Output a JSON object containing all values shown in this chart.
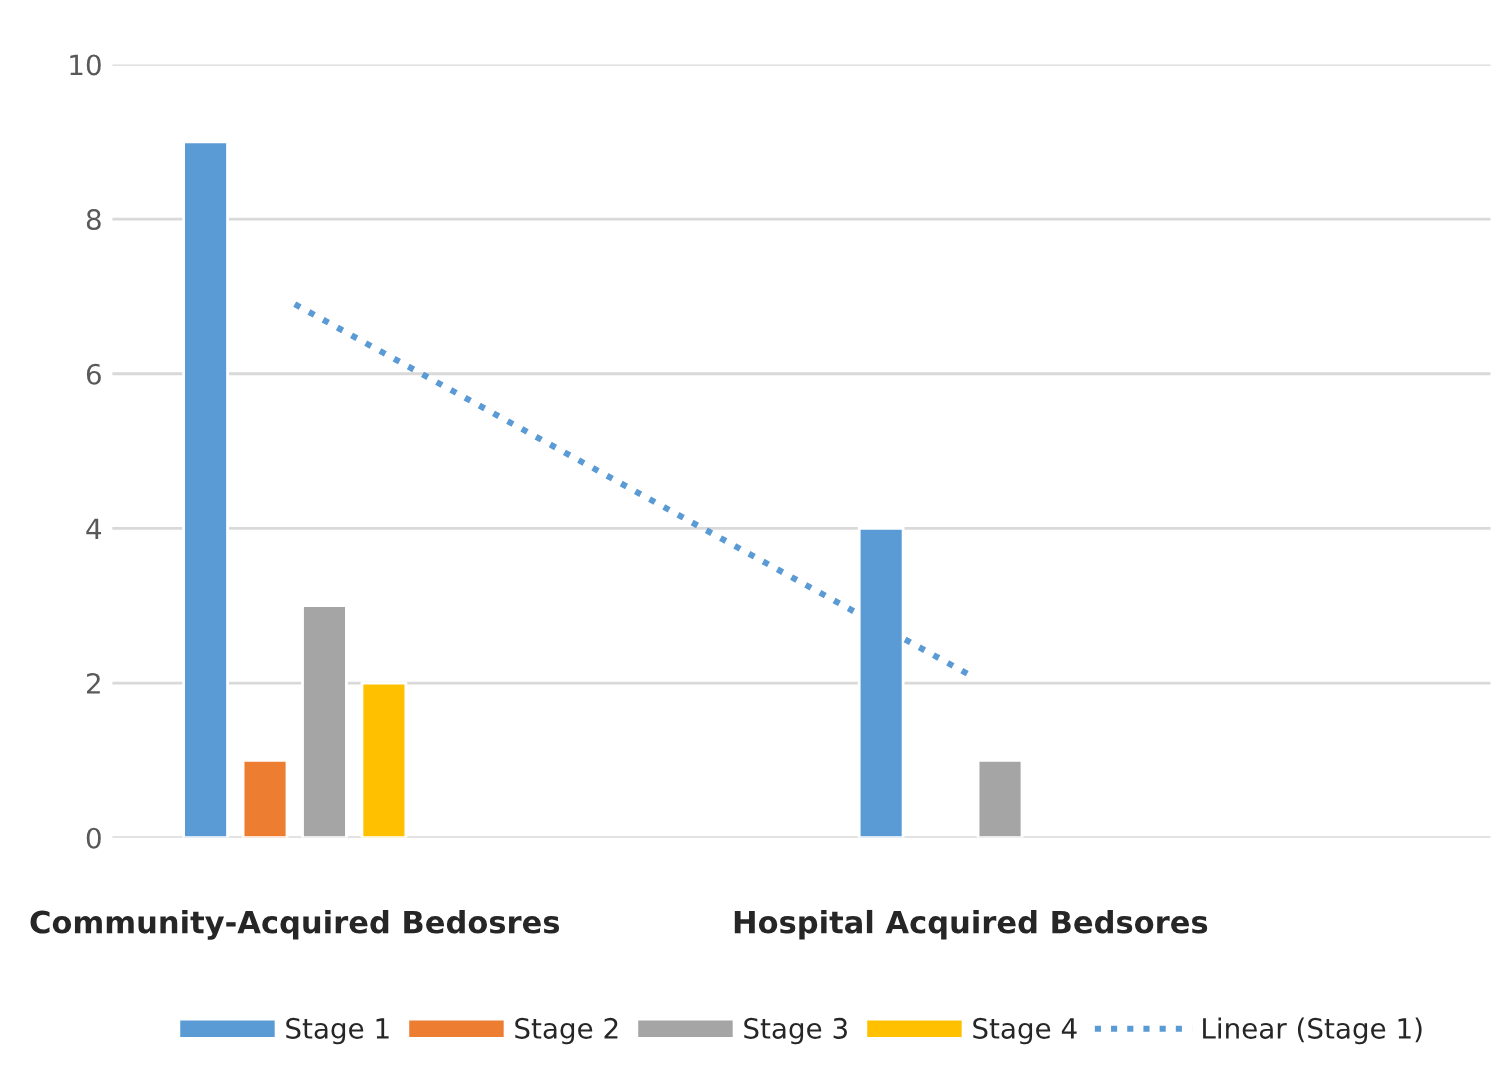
{
  "chart_data": {
    "type": "bar",
    "categories": [
      "Community-Acquired Bedosres",
      "Hospital Acquired Bedsores"
    ],
    "series": [
      {
        "name": "Stage 1",
        "color": "#5b9bd5",
        "values": [
          9,
          4
        ]
      },
      {
        "name": "Stage 2",
        "color": "#ed7d31",
        "values": [
          1,
          null
        ]
      },
      {
        "name": "Stage 3",
        "color": "#a5a5a5",
        "values": [
          3,
          1
        ]
      },
      {
        "name": "Stage 4",
        "color": "#ffc000",
        "values": [
          2,
          null
        ]
      },
      {
        "name": "Linear (Stage 1)",
        "type": "line",
        "color": "#5b9bd5",
        "line_style": "dotted",
        "values": [
          6.9,
          2.1
        ]
      }
    ],
    "ylim": [
      0,
      10
    ],
    "yticks": [
      0,
      2,
      4,
      6,
      8,
      10
    ],
    "grid": "y",
    "legend": "bottom"
  }
}
